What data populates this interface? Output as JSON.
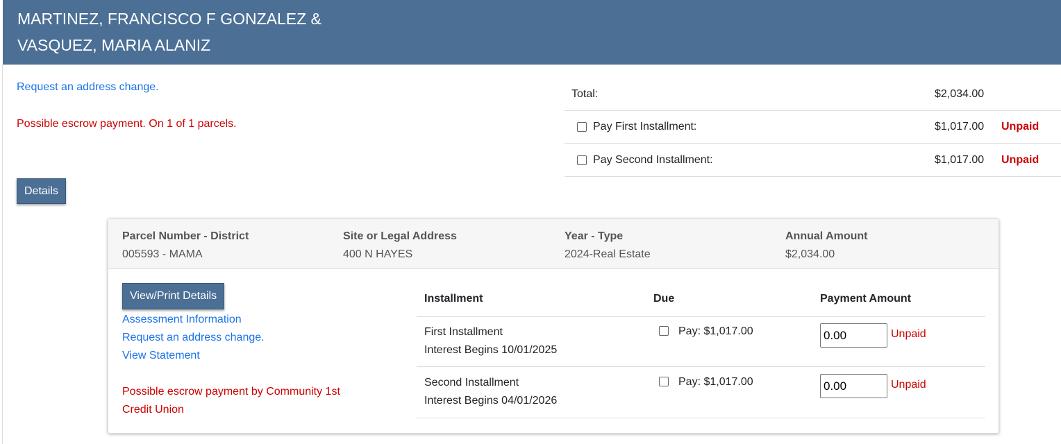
{
  "header": {
    "title_line1": "MARTINEZ, FRANCISCO F GONZALEZ &",
    "title_line2": "VASQUEZ, MARIA ALANIZ"
  },
  "left": {
    "address_link": "Request an address change.",
    "escrow_notice": "Possible escrow payment. On 1 of 1 parcels.",
    "details_button": "Details"
  },
  "summary": {
    "total_label": "Total:",
    "total_amount": "$2,034.00",
    "rows": [
      {
        "label": "Pay First Installment:",
        "amount": "$1,017.00",
        "status": "Unpaid"
      },
      {
        "label": "Pay Second Installment:",
        "amount": "$1,017.00",
        "status": "Unpaid"
      }
    ]
  },
  "parcel": {
    "headers": [
      "Parcel Number - District",
      "Site or Legal Address",
      "Year - Type",
      "Annual Amount"
    ],
    "values": [
      "005593 - MAMA",
      "400 N HAYES",
      "2024-Real Estate",
      "$2,034.00"
    ],
    "view_print_button": "View/Print Details",
    "links": [
      "Assessment Information",
      "Request an address change.",
      "View Statement"
    ],
    "escrow_notice": "Possible escrow payment by Community 1st Credit Union",
    "table": {
      "columns": [
        "Installment",
        "Due",
        "Payment Amount"
      ],
      "rows": [
        {
          "name": "First Installment",
          "interest": "Interest Begins 10/01/2025",
          "pay": "Pay: $1,017.00",
          "amount": "0.00",
          "status": "Unpaid"
        },
        {
          "name": "Second Installment",
          "interest": "Interest Begins 04/01/2026",
          "pay": "Pay: $1,017.00",
          "amount": "0.00",
          "status": "Unpaid"
        }
      ]
    }
  },
  "colors": {
    "header": "#4b6f95",
    "link": "#1a73e8",
    "alert": "#cc0000"
  }
}
